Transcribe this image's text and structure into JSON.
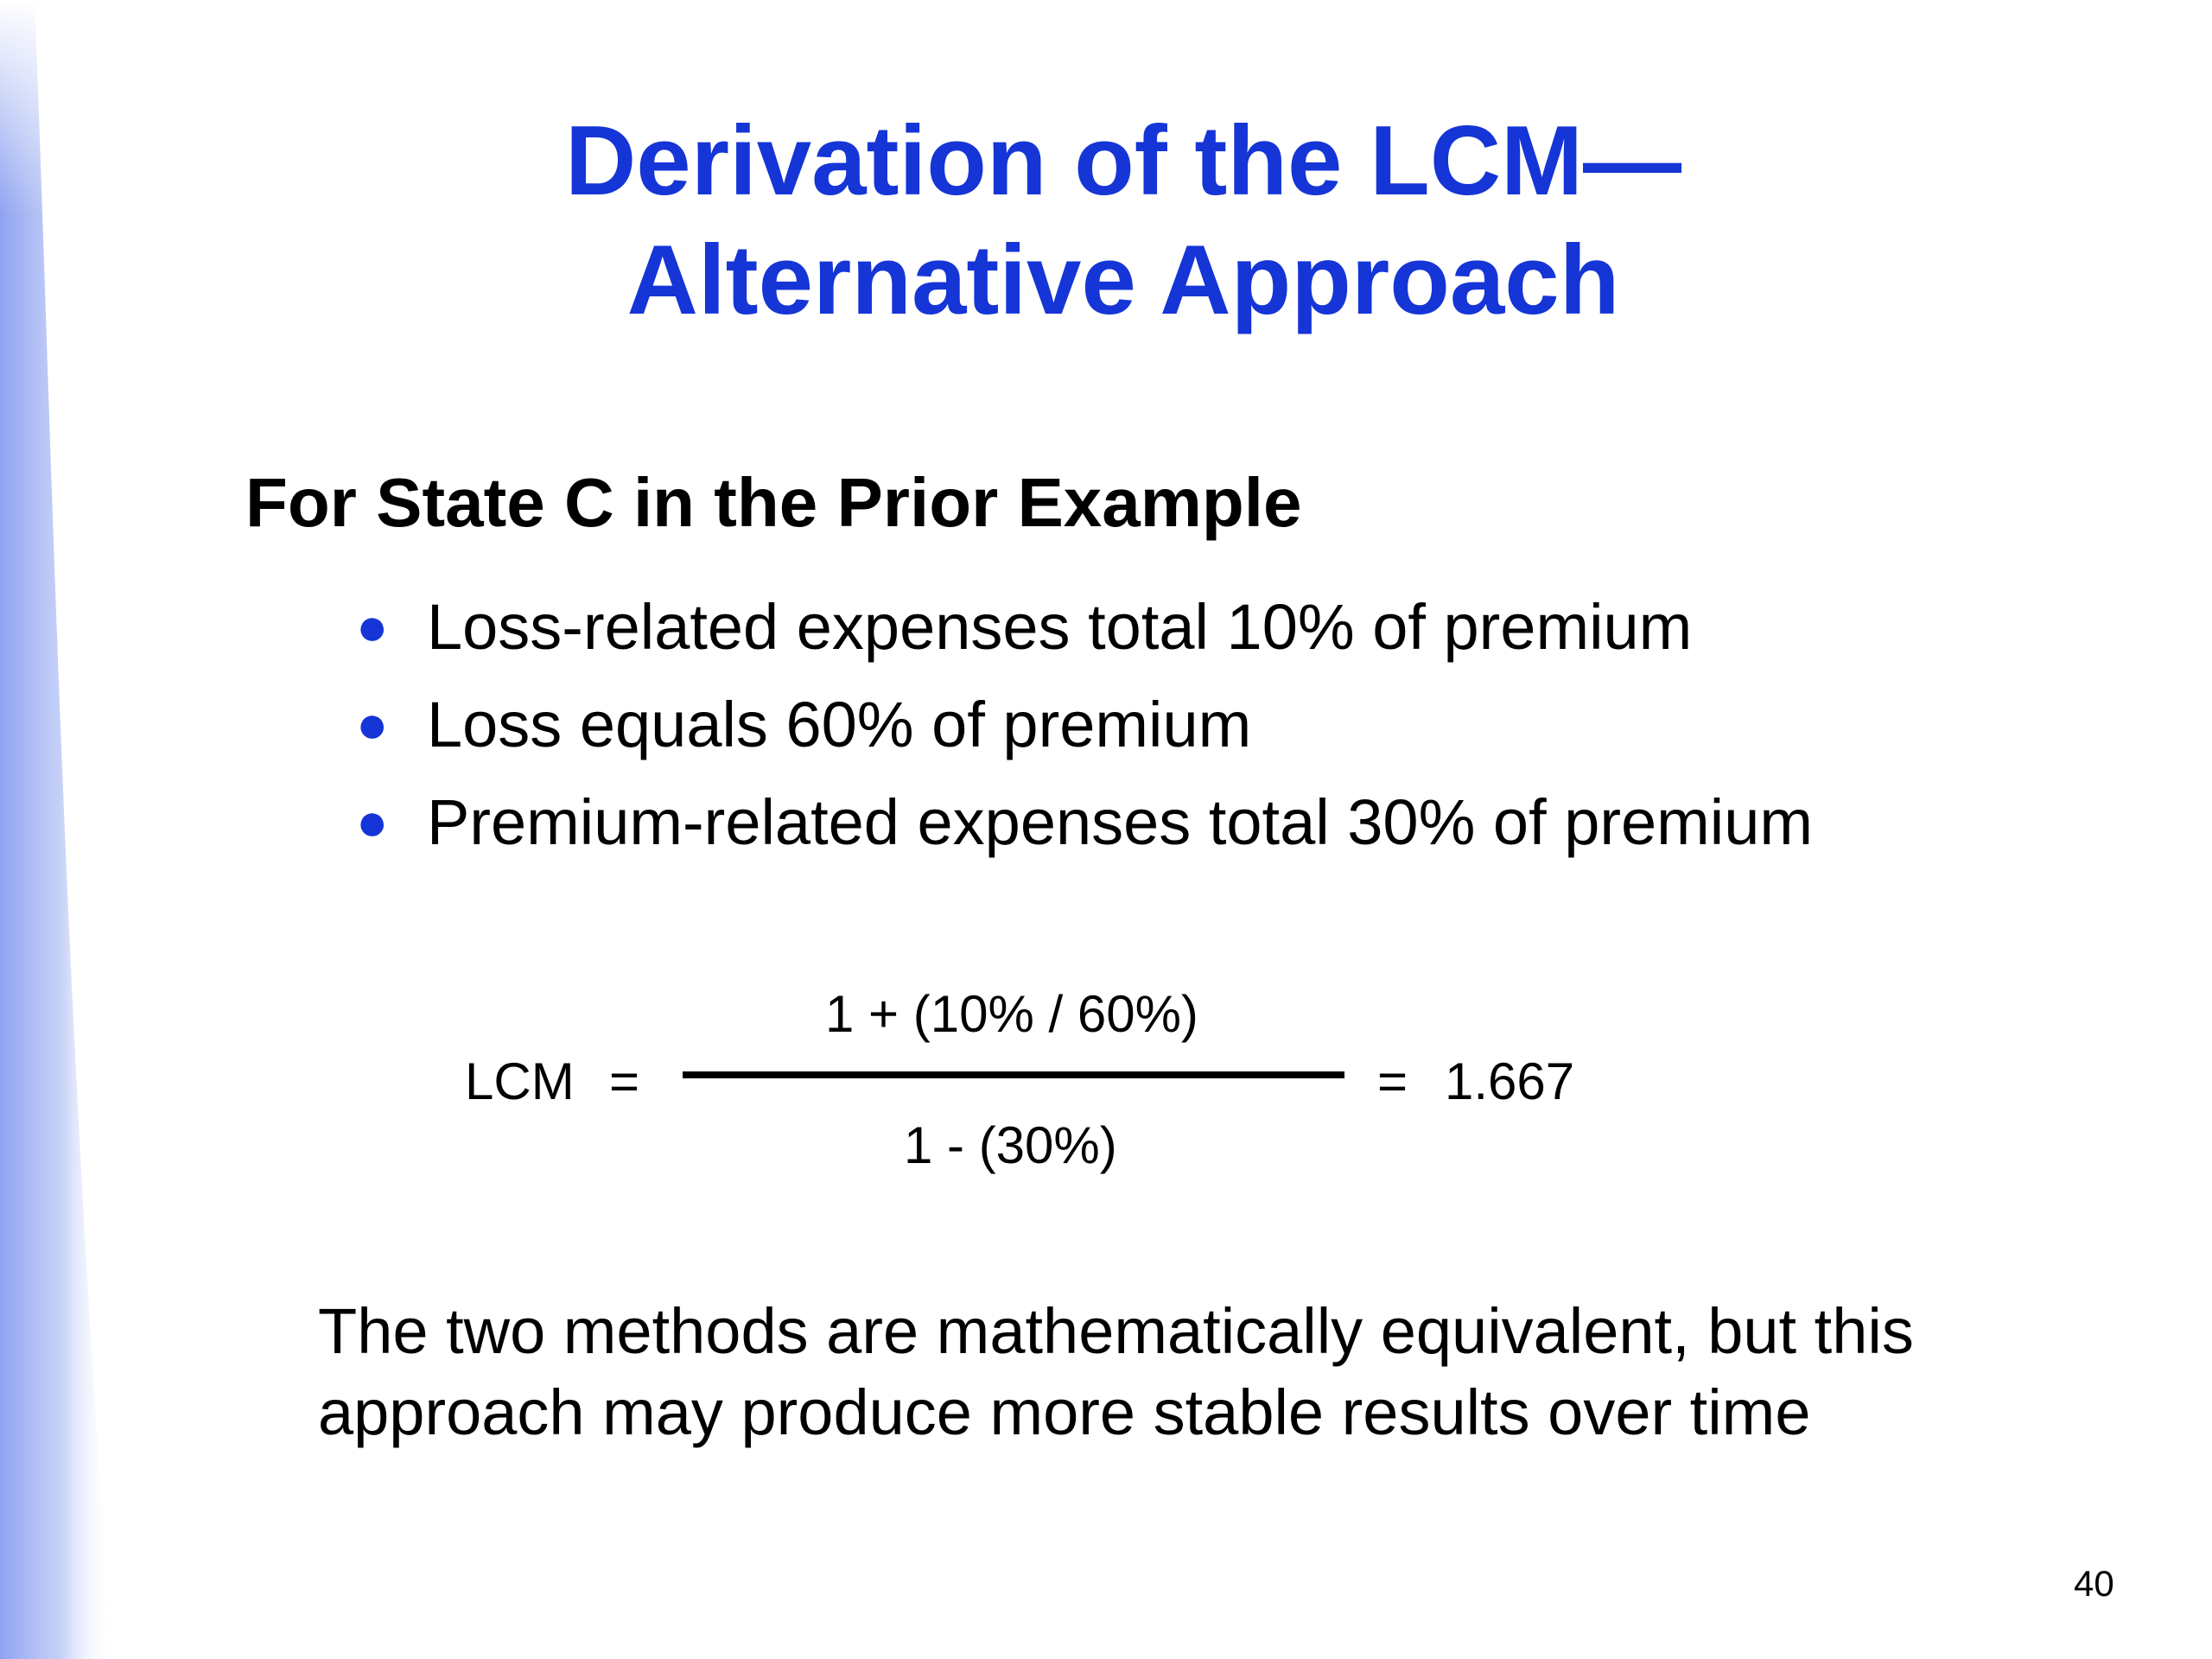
{
  "title": {
    "line1": "Derivation of the LCM—",
    "line2": "Alternative Approach"
  },
  "subheading": "For State C in the Prior Example",
  "bullets": [
    "Loss-related expenses total 10% of premium",
    "Loss equals 60% of premium",
    "Premium-related expenses total 30% of premium"
  ],
  "formula": {
    "lhs": "LCM",
    "equals": "=",
    "numerator": "1 + (10% / 60%)",
    "denominator": "1 - (30%)",
    "result": "1.667"
  },
  "note": {
    "line1": "The two methods are mathematically equivalent, but this",
    "line2": "approach may produce more stable results over time"
  },
  "page_number": "40",
  "colors": {
    "title": "#1535d6",
    "bullet": "#1535d6",
    "left_gradient": "#8ea2f0"
  }
}
